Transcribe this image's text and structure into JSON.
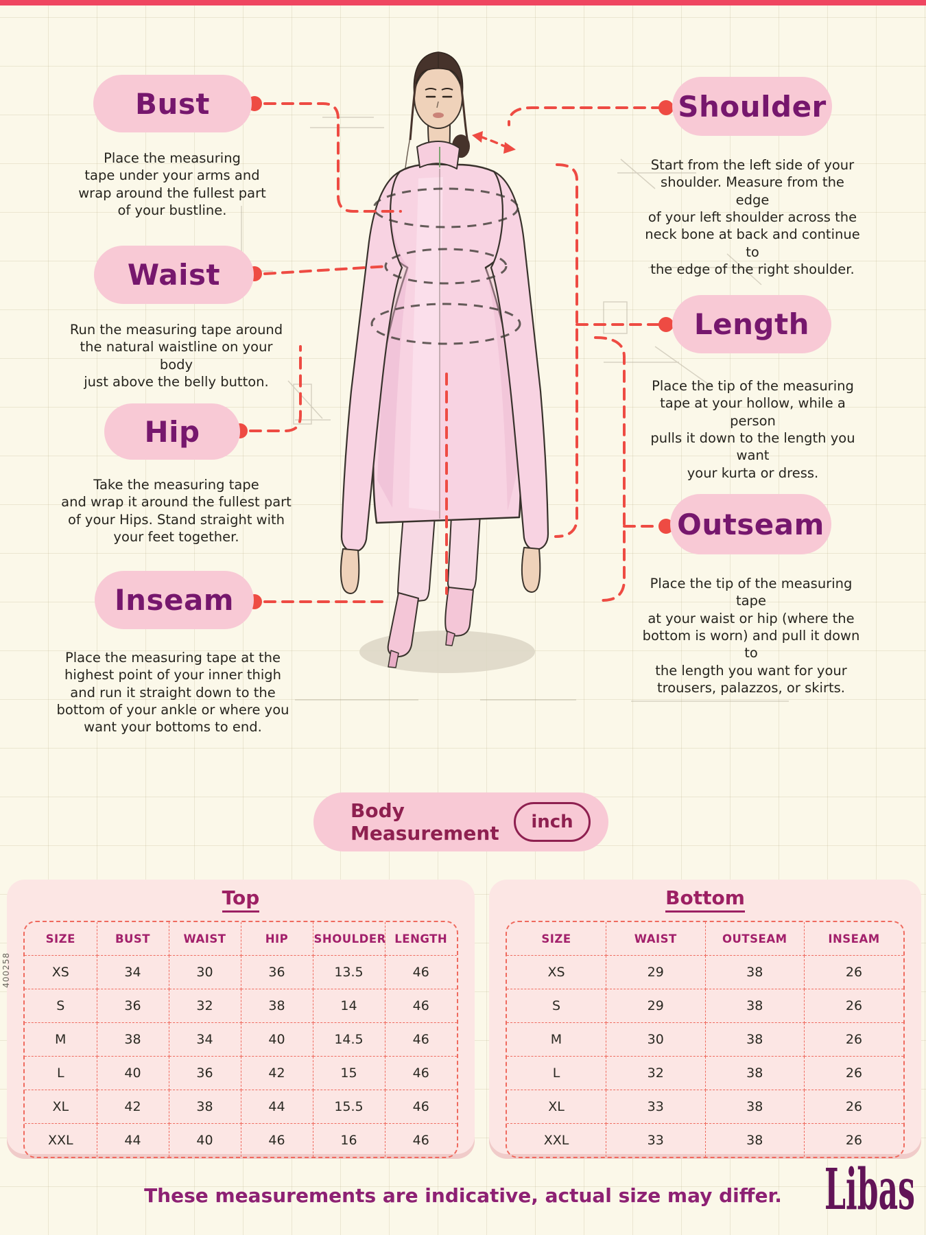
{
  "page": {
    "sku": "400258",
    "footer": "These measurements are indicative, actual size may differ.",
    "brand": "Libas"
  },
  "colors": {
    "background_cream": "#fbf8e9",
    "pill_pink": "#f8c9d5",
    "title_purple": "#76176d",
    "connector_red": "#ee4b43",
    "table_card_pink": "#fce6e4",
    "table_border_coral": "#ef6a5e",
    "header_magenta": "#a2206b",
    "maroon_text": "#8e2050",
    "footer_purple": "#8d2173",
    "top_strip": "#ef4660"
  },
  "sections": {
    "bust": {
      "label": "Bust",
      "desc": "Place the measuring\ntape under your arms and\nwrap around the fullest part\nof your bustline."
    },
    "waist": {
      "label": "Waist",
      "desc": "Run the measuring tape around\nthe natural waistline on your body\njust above the belly button."
    },
    "hip": {
      "label": "Hip",
      "desc": "Take the measuring tape\nand wrap it around the fullest part\nof your Hips. Stand straight with\nyour feet together."
    },
    "inseam": {
      "label": "Inseam",
      "desc": "Place the measuring tape at the\nhighest point of your inner thigh\nand run it straight down to the\nbottom of your ankle or where you\nwant your bottoms to end."
    },
    "shoulder": {
      "label": "Shoulder",
      "desc": "Start from the left side of your\nshoulder. Measure from the edge\nof your left shoulder across the\nneck bone at back and continue to\nthe edge of the right shoulder."
    },
    "length": {
      "label": "Length",
      "desc": "Place the tip of the measuring\ntape at your hollow, while a person\npulls it down to the length you want\nyour kurta or dress."
    },
    "outseam": {
      "label": "Outseam",
      "desc": "Place the tip of the measuring tape\nat your waist or hip (where the\nbottom is worn) and pull it down to\nthe length you want for your\ntrousers, palazzos, or skirts."
    }
  },
  "measurement_bar": {
    "label": "Body Measurement",
    "unit": "inch"
  },
  "tables": {
    "top": {
      "title": "Top",
      "columns": [
        "SIZE",
        "BUST",
        "WAIST",
        "HIP",
        "SHOULDER",
        "LENGTH"
      ],
      "rows": [
        [
          "XS",
          "34",
          "30",
          "36",
          "13.5",
          "46"
        ],
        [
          "S",
          "36",
          "32",
          "38",
          "14",
          "46"
        ],
        [
          "M",
          "38",
          "34",
          "40",
          "14.5",
          "46"
        ],
        [
          "L",
          "40",
          "36",
          "42",
          "15",
          "46"
        ],
        [
          "XL",
          "42",
          "38",
          "44",
          "15.5",
          "46"
        ],
        [
          "XXL",
          "44",
          "40",
          "46",
          "16",
          "46"
        ]
      ]
    },
    "bottom": {
      "title": "Bottom",
      "columns": [
        "SIZE",
        "WAIST",
        "OUTSEAM",
        "INSEAM"
      ],
      "rows": [
        [
          "XS",
          "29",
          "38",
          "26"
        ],
        [
          "S",
          "29",
          "38",
          "26"
        ],
        [
          "M",
          "30",
          "38",
          "26"
        ],
        [
          "L",
          "32",
          "38",
          "26"
        ],
        [
          "XL",
          "33",
          "38",
          "26"
        ],
        [
          "XXL",
          "33",
          "38",
          "26"
        ]
      ]
    }
  }
}
